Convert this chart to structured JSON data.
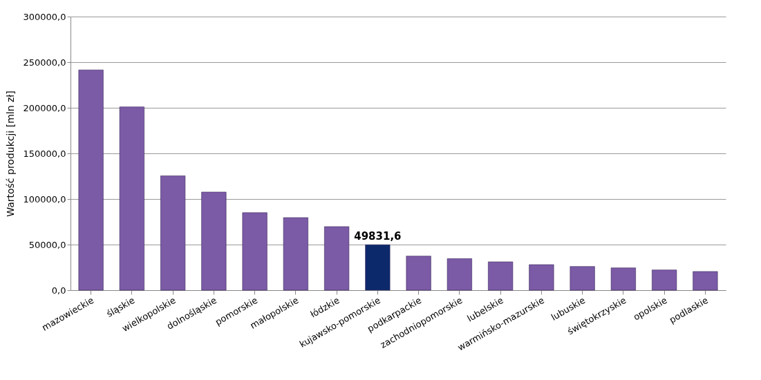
{
  "chart_data": {
    "type": "bar",
    "ylabel": "Wartość produkcji [mln zł]",
    "categories": [
      "mazowieckie",
      "śląskie",
      "wielkopolskie",
      "dolnośląskie",
      "pomorskie",
      "małopolskie",
      "łódzkie",
      "kujawsko-pomorskie",
      "podkarpackie",
      "zachodniopomorskie",
      "lubelskie",
      "warmińsko-mazurskie",
      "lubuskie",
      "świętokrzyskie",
      "opolskie",
      "podlaskie"
    ],
    "values": [
      241500,
      201000,
      125400,
      107600,
      85000,
      79600,
      69700,
      49831.6,
      37400,
      34600,
      31100,
      28000,
      26000,
      24500,
      22200,
      20500
    ],
    "colors": [
      "#7b5aa6",
      "#7b5aa6",
      "#7b5aa6",
      "#7b5aa6",
      "#7b5aa6",
      "#7b5aa6",
      "#7b5aa6",
      "#0c2a6b",
      "#7b5aa6",
      "#7b5aa6",
      "#7b5aa6",
      "#7b5aa6",
      "#7b5aa6",
      "#7b5aa6",
      "#7b5aa6",
      "#7b5aa6"
    ],
    "value_labels": [
      null,
      null,
      null,
      null,
      null,
      null,
      null,
      "49831,6",
      null,
      null,
      null,
      null,
      null,
      null,
      null,
      null
    ],
    "ylim": [
      0,
      300000
    ],
    "yticks": [
      {
        "value": 0,
        "label": "0,0"
      },
      {
        "value": 50000,
        "label": "50000,0"
      },
      {
        "value": 100000,
        "label": "100000,0"
      },
      {
        "value": 150000,
        "label": "150000,0"
      },
      {
        "value": 200000,
        "label": "200000,0"
      },
      {
        "value": 250000,
        "label": "250000,0"
      },
      {
        "value": 300000,
        "label": "300000,0"
      }
    ],
    "grid": "y"
  }
}
